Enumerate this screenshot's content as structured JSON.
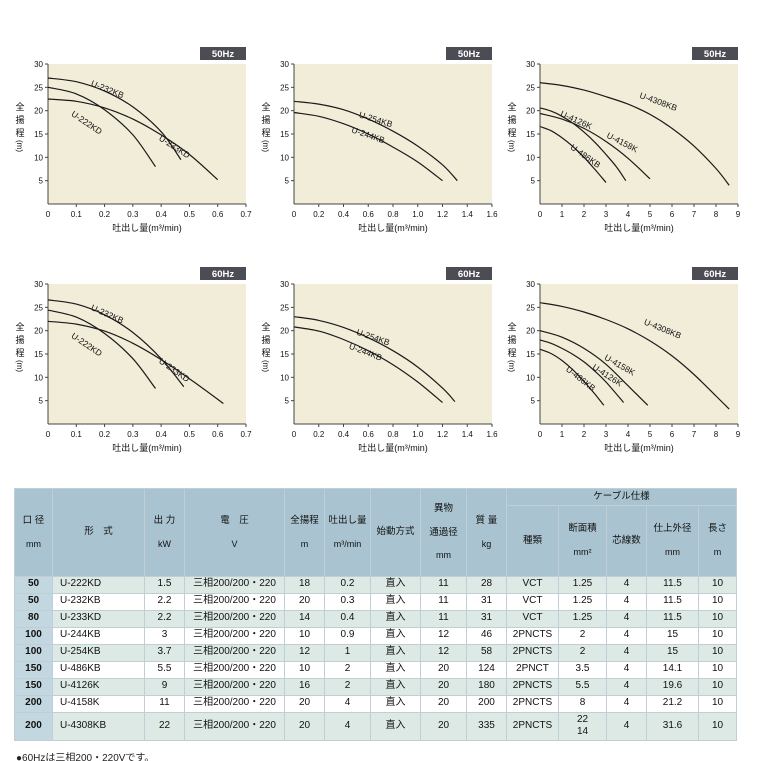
{
  "colors": {
    "plot_bg": "#f2edd9",
    "badge_bg": "#4c4c54",
    "badge_text": "#ffffff",
    "curve": "#1a1a1a",
    "axis": "#444444",
    "text": "#111111",
    "header_bg": "#a9c4d0",
    "firstcol_bg": "#c3d7e0",
    "stripe_bg": "#dde9e4",
    "border": "#c0cfd5"
  },
  "page": {
    "footnote": "●60Hzは三相200・220Vです。"
  },
  "chart_data": [
    {
      "type": "line",
      "title": "50Hz",
      "xlabel": "吐出し量(m³/min)",
      "ylabel": "全揚程",
      "yunit": "(m)",
      "xlim": [
        0,
        0.7
      ],
      "ylim": [
        0,
        30
      ],
      "xticks": [
        "0",
        "0.1",
        "0.2",
        "0.3",
        "0.4",
        "0.5",
        "0.6",
        "0.7"
      ],
      "yticks": [
        5,
        10,
        15,
        20,
        25,
        30
      ],
      "grid": false,
      "legend": "inline-curve-labels",
      "series": [
        {
          "name": "U-232KB",
          "points": [
            [
              0,
              27
            ],
            [
              0.1,
              26.2
            ],
            [
              0.2,
              24.2
            ],
            [
              0.3,
              20.8
            ],
            [
              0.4,
              15.5
            ],
            [
              0.47,
              9.5
            ]
          ],
          "label": [
            0.15,
            25.4
          ],
          "angle": 22
        },
        {
          "name": "U-222KD",
          "points": [
            [
              0,
              25
            ],
            [
              0.1,
              23.6
            ],
            [
              0.2,
              20.2
            ],
            [
              0.3,
              14.8
            ],
            [
              0.38,
              8
            ]
          ],
          "label": [
            0.08,
            19
          ],
          "angle": 34
        },
        {
          "name": "U-233KD",
          "points": [
            [
              0,
              22.5
            ],
            [
              0.1,
              22
            ],
            [
              0.2,
              20.6
            ],
            [
              0.3,
              18.2
            ],
            [
              0.4,
              14.8
            ],
            [
              0.5,
              10.6
            ],
            [
              0.6,
              5.2
            ]
          ],
          "label": [
            0.39,
            13.8
          ],
          "angle": 33
        }
      ]
    },
    {
      "type": "line",
      "title": "50Hz",
      "xlabel": "吐出し量(m³/min)",
      "ylabel": "全揚程",
      "yunit": "(m)",
      "xlim": [
        0,
        1.6
      ],
      "ylim": [
        0,
        30
      ],
      "xticks": [
        "0",
        "0.2",
        "0.4",
        "0.6",
        "0.8",
        "1.0",
        "1.2",
        "1.4",
        "1.6"
      ],
      "yticks": [
        5,
        10,
        15,
        20,
        25,
        30
      ],
      "grid": false,
      "legend": "inline-curve-labels",
      "series": [
        {
          "name": "U-254KB",
          "points": [
            [
              0,
              22
            ],
            [
              0.2,
              21.4
            ],
            [
              0.4,
              20.2
            ],
            [
              0.6,
              18.2
            ],
            [
              0.8,
              15.6
            ],
            [
              1,
              12.4
            ],
            [
              1.2,
              8.4
            ],
            [
              1.32,
              5
            ]
          ],
          "label": [
            0.52,
            18.6
          ],
          "angle": 17
        },
        {
          "name": "U-244KB",
          "points": [
            [
              0,
              19.6
            ],
            [
              0.2,
              18.8
            ],
            [
              0.4,
              17.2
            ],
            [
              0.6,
              15
            ],
            [
              0.8,
              12.2
            ],
            [
              1,
              9
            ],
            [
              1.2,
              5
            ]
          ],
          "label": [
            0.46,
            15.4
          ],
          "angle": 19
        }
      ]
    },
    {
      "type": "line",
      "title": "50Hz",
      "xlabel": "吐出し量(m³/min)",
      "ylabel": "全揚程",
      "yunit": "(m)",
      "xlim": [
        0,
        9
      ],
      "ylim": [
        0,
        30
      ],
      "xticks": [
        "0",
        "1",
        "2",
        "3",
        "4",
        "5",
        "6",
        "7",
        "8",
        "9"
      ],
      "yticks": [
        5,
        10,
        15,
        20,
        25,
        30
      ],
      "grid": false,
      "legend": "inline-curve-labels",
      "series": [
        {
          "name": "U-4308KB",
          "points": [
            [
              0,
              26
            ],
            [
              1,
              25.4
            ],
            [
              2,
              24.4
            ],
            [
              3,
              23
            ],
            [
              4,
              21.4
            ],
            [
              5,
              19.2
            ],
            [
              6,
              16.2
            ],
            [
              7,
              12.4
            ],
            [
              8,
              7.6
            ],
            [
              8.6,
              4
            ]
          ],
          "label": [
            4.5,
            22.8
          ],
          "angle": 20
        },
        {
          "name": "U-4126K",
          "points": [
            [
              0,
              20.6
            ],
            [
              0.5,
              19.9
            ],
            [
              1,
              18.8
            ],
            [
              1.5,
              17.3
            ],
            [
              2,
              15.4
            ],
            [
              2.5,
              13.2
            ],
            [
              3,
              10.6
            ],
            [
              3.5,
              7.8
            ],
            [
              3.9,
              5
            ]
          ],
          "label": [
            0.9,
            18.9
          ],
          "angle": 24
        },
        {
          "name": "U-4158K",
          "points": [
            [
              0,
              19.4
            ],
            [
              1,
              18.2
            ],
            [
              2,
              16.2
            ],
            [
              3,
              13.4
            ],
            [
              4,
              9.8
            ],
            [
              5,
              5.4
            ]
          ],
          "label": [
            3,
            14.3
          ],
          "angle": 27
        },
        {
          "name": "U-486KB",
          "points": [
            [
              0,
              16.6
            ],
            [
              0.5,
              15.7
            ],
            [
              1,
              14.2
            ],
            [
              1.5,
              12.3
            ],
            [
              2,
              10
            ],
            [
              2.5,
              7.4
            ],
            [
              3,
              4.6
            ]
          ],
          "label": [
            1.35,
            11.9
          ],
          "angle": 35
        }
      ]
    },
    {
      "type": "line",
      "title": "60Hz",
      "xlabel": "吐出し量(m³/min)",
      "ylabel": "全揚程",
      "yunit": "(m)",
      "xlim": [
        0,
        0.7
      ],
      "ylim": [
        0,
        30
      ],
      "xticks": [
        "0",
        "0.1",
        "0.2",
        "0.3",
        "0.4",
        "0.5",
        "0.6",
        "0.7"
      ],
      "yticks": [
        5,
        10,
        15,
        20,
        25,
        30
      ],
      "grid": false,
      "legend": "inline-curve-labels",
      "series": [
        {
          "name": "U-232KB",
          "points": [
            [
              0,
              26.6
            ],
            [
              0.1,
              25.7
            ],
            [
              0.2,
              23.4
            ],
            [
              0.3,
              19.6
            ],
            [
              0.4,
              14
            ],
            [
              0.48,
              8
            ]
          ],
          "label": [
            0.15,
            24.5
          ],
          "angle": 24
        },
        {
          "name": "U-222KD",
          "points": [
            [
              0,
              24.4
            ],
            [
              0.1,
              22.9
            ],
            [
              0.2,
              19.4
            ],
            [
              0.3,
              14
            ],
            [
              0.38,
              7.6
            ]
          ],
          "label": [
            0.08,
            18.6
          ],
          "angle": 34
        },
        {
          "name": "U-233KD",
          "points": [
            [
              0,
              22
            ],
            [
              0.1,
              21.4
            ],
            [
              0.2,
              19.9
            ],
            [
              0.3,
              17.3
            ],
            [
              0.4,
              13.8
            ],
            [
              0.5,
              9.7
            ],
            [
              0.62,
              4.4
            ]
          ],
          "label": [
            0.39,
            13.2
          ],
          "angle": 35
        }
      ]
    },
    {
      "type": "line",
      "title": "60Hz",
      "xlabel": "吐出し量(m³/min)",
      "ylabel": "全揚程",
      "yunit": "(m)",
      "xlim": [
        0,
        1.6
      ],
      "ylim": [
        0,
        30
      ],
      "xticks": [
        "0",
        "0.2",
        "0.4",
        "0.6",
        "0.8",
        "1.0",
        "1.2",
        "1.4",
        "1.6"
      ],
      "yticks": [
        5,
        10,
        15,
        20,
        25,
        30
      ],
      "grid": false,
      "legend": "inline-curve-labels",
      "series": [
        {
          "name": "U-254KB",
          "points": [
            [
              0,
              23
            ],
            [
              0.2,
              22.2
            ],
            [
              0.4,
              20.7
            ],
            [
              0.6,
              18.5
            ],
            [
              0.8,
              15.7
            ],
            [
              1,
              12.2
            ],
            [
              1.2,
              7.7
            ],
            [
              1.3,
              4.8
            ]
          ],
          "label": [
            0.5,
            19.2
          ],
          "angle": 19
        },
        {
          "name": "U-244KB",
          "points": [
            [
              0,
              20.8
            ],
            [
              0.2,
              19.9
            ],
            [
              0.4,
              18.1
            ],
            [
              0.6,
              15.7
            ],
            [
              0.8,
              12.7
            ],
            [
              1,
              9
            ],
            [
              1.2,
              4.6
            ]
          ],
          "label": [
            0.44,
            16.2
          ],
          "angle": 21
        }
      ]
    },
    {
      "type": "line",
      "title": "60Hz",
      "xlabel": "吐出し量(m³/min)",
      "ylabel": "全揚程",
      "yunit": "(m)",
      "xlim": [
        0,
        9
      ],
      "ylim": [
        0,
        30
      ],
      "xticks": [
        "0",
        "1",
        "2",
        "3",
        "4",
        "5",
        "6",
        "7",
        "8",
        "9"
      ],
      "yticks": [
        5,
        10,
        15,
        20,
        25,
        30
      ],
      "grid": false,
      "legend": "inline-curve-labels",
      "series": [
        {
          "name": "U-4308KB",
          "points": [
            [
              0,
              26
            ],
            [
              1,
              25.2
            ],
            [
              2,
              24
            ],
            [
              3,
              22.4
            ],
            [
              4,
              20.4
            ],
            [
              5,
              17.8
            ],
            [
              6,
              14.6
            ],
            [
              7,
              10.6
            ],
            [
              8,
              6
            ],
            [
              8.6,
              3.2
            ]
          ],
          "label": [
            4.7,
            21.4
          ],
          "angle": 22
        },
        {
          "name": "U-4158K",
          "points": [
            [
              0,
              20
            ],
            [
              1,
              18.6
            ],
            [
              2,
              16.2
            ],
            [
              3,
              12.8
            ],
            [
              4,
              8.2
            ],
            [
              4.9,
              4
            ]
          ],
          "label": [
            2.9,
            13.9
          ],
          "angle": 30
        },
        {
          "name": "U-4126K",
          "points": [
            [
              0,
              18
            ],
            [
              0.5,
              17.3
            ],
            [
              1,
              16.2
            ],
            [
              1.5,
              14.9
            ],
            [
              2,
              13.3
            ],
            [
              2.5,
              11.3
            ],
            [
              3,
              9
            ],
            [
              3.8,
              4.6
            ]
          ],
          "label": [
            2.35,
            11.9
          ],
          "angle": 33
        },
        {
          "name": "U-486KB",
          "points": [
            [
              0,
              16
            ],
            [
              0.5,
              15.1
            ],
            [
              1,
              13.6
            ],
            [
              1.5,
              11.6
            ],
            [
              2,
              9.1
            ],
            [
              2.5,
              6.4
            ],
            [
              2.9,
              4
            ]
          ],
          "label": [
            1.15,
            11.5
          ],
          "angle": 38
        }
      ]
    }
  ],
  "table": {
    "headers": {
      "diameter": {
        "label": "口 径",
        "unit": "mm"
      },
      "model": {
        "label": "形　式"
      },
      "output": {
        "label": "出 力",
        "unit": "kW"
      },
      "voltage": {
        "label": "電　圧",
        "unit": "V"
      },
      "head": {
        "label": "全揚程",
        "unit": "m"
      },
      "capacity": {
        "label": "吐出し量",
        "unit": "m³/min"
      },
      "starting": {
        "label": "始動方式"
      },
      "passage": {
        "label": "異物",
        "label2": "通過径",
        "unit": "mm"
      },
      "mass": {
        "label": "質 量",
        "unit": "kg"
      },
      "cable_group": "ケーブル仕様",
      "cable_type": {
        "label": "種類"
      },
      "cable_area": {
        "label": "断面積",
        "unit": "mm²"
      },
      "cable_cores": {
        "label": "芯線数"
      },
      "cable_od": {
        "label": "仕上外径",
        "unit": "mm"
      },
      "cable_len": {
        "label": "長さ",
        "unit": "m"
      }
    },
    "rows": [
      {
        "cells": [
          "50",
          "U-222KD",
          "1.5",
          "三相200/200・220",
          "18",
          "0.2",
          "直入",
          "11",
          "28",
          "VCT",
          "1.25",
          "4",
          "11.5",
          "10"
        ]
      },
      {
        "cells": [
          "50",
          "U-232KB",
          "2.2",
          "三相200/200・220",
          "20",
          "0.3",
          "直入",
          "11",
          "31",
          "VCT",
          "1.25",
          "4",
          "11.5",
          "10"
        ]
      },
      {
        "cells": [
          "80",
          "U-233KD",
          "2.2",
          "三相200/200・220",
          "14",
          "0.4",
          "直入",
          "11",
          "31",
          "VCT",
          "1.25",
          "4",
          "11.5",
          "10"
        ]
      },
      {
        "cells": [
          "100",
          "U-244KB",
          "3",
          "三相200/200・220",
          "10",
          "0.9",
          "直入",
          "12",
          "46",
          "2PNCTS",
          "2",
          "4",
          "15",
          "10"
        ]
      },
      {
        "cells": [
          "100",
          "U-254KB",
          "3.7",
          "三相200/200・220",
          "12",
          "1",
          "直入",
          "12",
          "58",
          "2PNCTS",
          "2",
          "4",
          "15",
          "10"
        ]
      },
      {
        "cells": [
          "150",
          "U-486KB",
          "5.5",
          "三相200/200・220",
          "10",
          "2",
          "直入",
          "20",
          "124",
          "2PNCT",
          "3.5",
          "4",
          "14.1",
          "10"
        ]
      },
      {
        "cells": [
          "150",
          "U-4126K",
          "9",
          "三相200/200・220",
          "16",
          "2",
          "直入",
          "20",
          "180",
          "2PNCTS",
          "5.5",
          "4",
          "19.6",
          "10"
        ]
      },
      {
        "cells": [
          "200",
          "U-4158K",
          "11",
          "三相200/200・220",
          "20",
          "4",
          "直入",
          "20",
          "200",
          "2PNCTS",
          "8",
          "4",
          "21.2",
          "10"
        ]
      },
      {
        "cells": [
          "200",
          "U-4308KB",
          "22",
          "三相200/200・220",
          "20",
          "4",
          "直入",
          "20",
          "335",
          "2PNCTS",
          "22\n14",
          "4",
          "31.6",
          "10"
        ]
      }
    ]
  }
}
